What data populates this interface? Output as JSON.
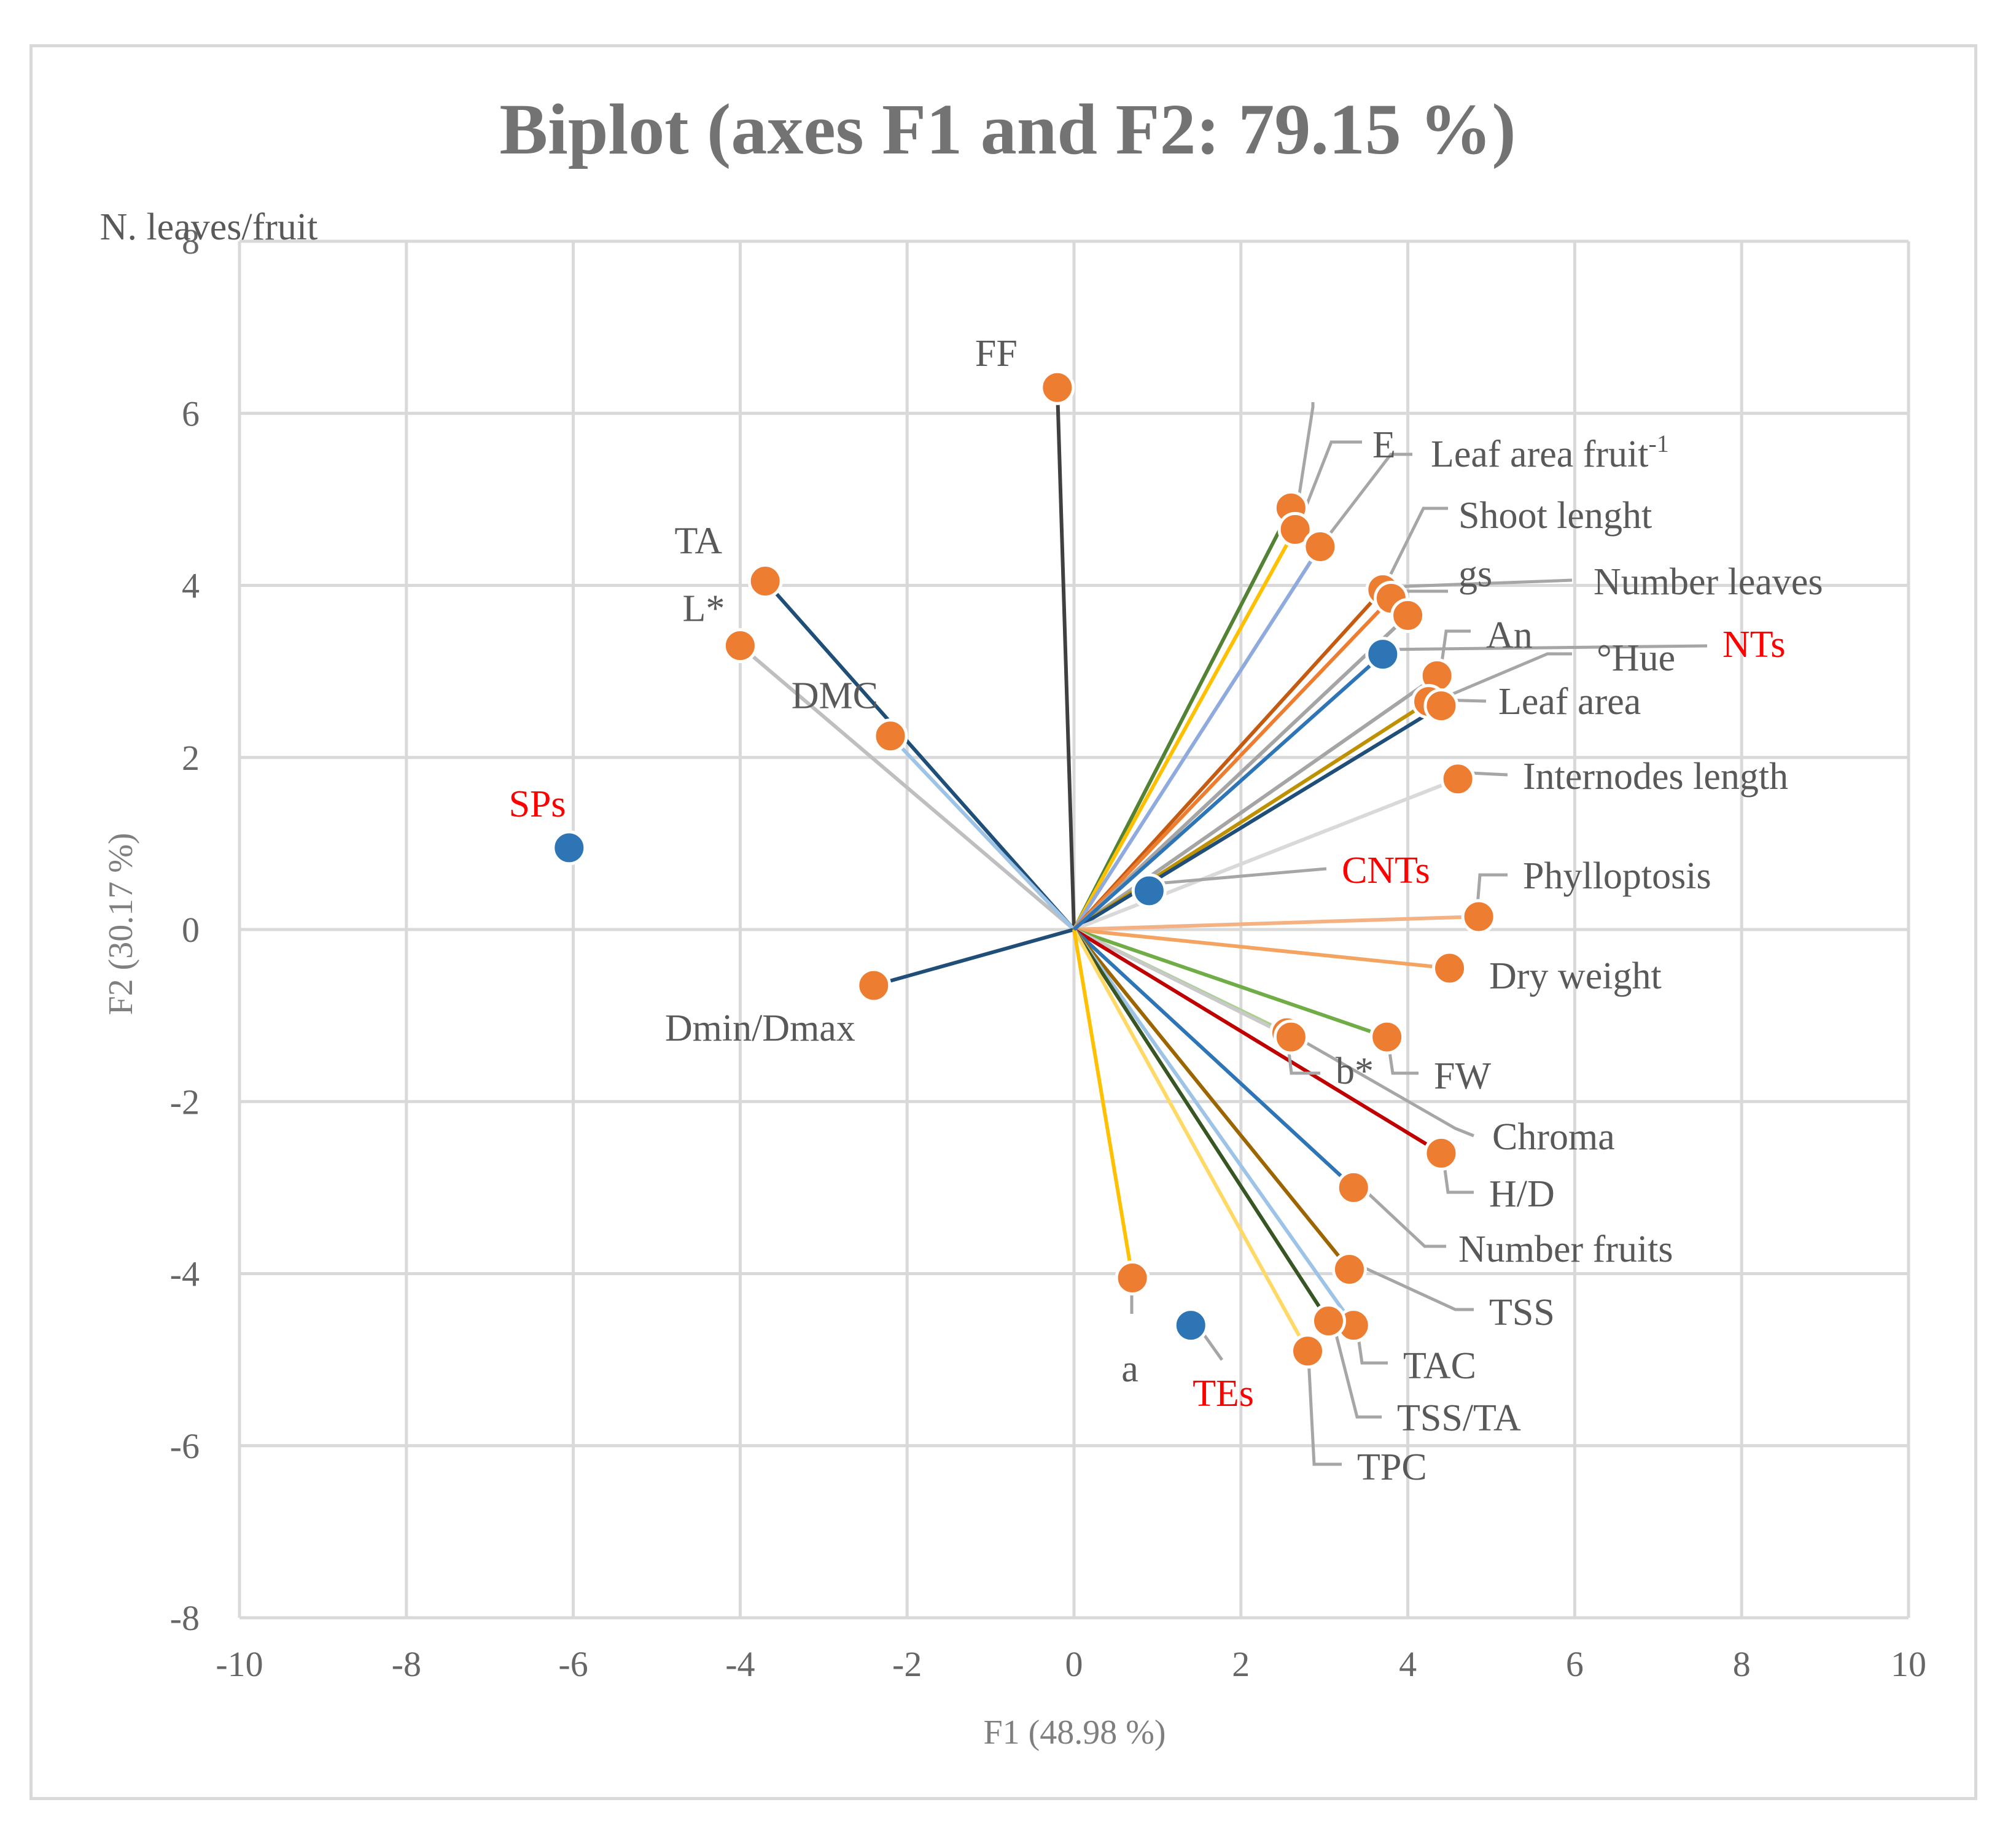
{
  "chart_data": {
    "type": "scatter",
    "title": "Biplot (axes F1 and F2: 79.15 %)",
    "xlabel": "F1 (48.98 %)",
    "ylabel": "F2 (30.17 %)",
    "xlim": [
      -10,
      10
    ],
    "ylim": [
      -8,
      8
    ],
    "xticks": [
      "-10",
      "-8",
      "-6",
      "-4",
      "-2",
      "0",
      "2",
      "4",
      "6",
      "8",
      "10"
    ],
    "yticks": [
      "8",
      "6",
      "4",
      "2",
      "0",
      "-2",
      "-4",
      "-6",
      "-8"
    ],
    "grid": true,
    "series": [
      {
        "name": "Variables",
        "color": "#ed7d31",
        "points": [
          {
            "label": "FF",
            "x": -0.2,
            "y": 6.3,
            "vector_color": "#404040"
          },
          {
            "label": "TA",
            "x": -3.7,
            "y": 4.05,
            "vector_color": "#1f4e79"
          },
          {
            "label": "L*",
            "x": -4.0,
            "y": 3.3,
            "vector_color": "#bfbfbf"
          },
          {
            "label": "DMC",
            "x": -2.2,
            "y": 2.25,
            "vector_color": "#9dc3e6"
          },
          {
            "label": "Dmin/Dmax",
            "x": -2.4,
            "y": -0.65,
            "vector_color": "#1f4e79"
          },
          {
            "label": "N. leaves/fruit",
            "x": 2.6,
            "y": 4.9,
            "vector_color": "#548235"
          },
          {
            "label": "E",
            "x": 2.65,
            "y": 4.65,
            "vector_color": "#ffc000"
          },
          {
            "label": "Leaf area fruit-1",
            "x": 2.95,
            "y": 4.45,
            "vector_color": "#8faadc"
          },
          {
            "label": "Shoot lenght",
            "x": 3.7,
            "y": 3.95,
            "vector_color": "#c55a11"
          },
          {
            "label": "gs",
            "x": 3.8,
            "y": 3.85,
            "vector_color": "#ed7d31"
          },
          {
            "label": "Number leaves",
            "x": 4.0,
            "y": 3.65,
            "vector_color": "#a5a5a5"
          },
          {
            "label": "An",
            "x": 4.35,
            "y": 2.95,
            "vector_color": "#a5a5a5"
          },
          {
            "label": "°Hue",
            "x": 4.25,
            "y": 2.65,
            "vector_color": "#bf9000"
          },
          {
            "label": "Leaf area",
            "x": 4.4,
            "y": 2.6,
            "vector_color": "#1f4e79"
          },
          {
            "label": "Internodes length",
            "x": 4.6,
            "y": 1.75,
            "vector_color": "#d9d9d9"
          },
          {
            "label": "Phylloptosis",
            "x": 4.85,
            "y": 0.15,
            "vector_color": "#f4b183"
          },
          {
            "label": "Dry weight",
            "x": 4.5,
            "y": -0.45,
            "vector_color": "#f4a460"
          },
          {
            "label": "FW",
            "x": 3.75,
            "y": -1.25,
            "vector_color": "#70ad47"
          },
          {
            "label": "b*",
            "x": 2.55,
            "y": -1.2,
            "vector_color": "#a9d18e"
          },
          {
            "label": "Chroma",
            "x": 2.6,
            "y": -1.25,
            "vector_color": "#c9c9c9"
          },
          {
            "label": "H/D",
            "x": 4.4,
            "y": -2.6,
            "vector_color": "#c00000"
          },
          {
            "label": "Number fruits",
            "x": 3.35,
            "y": -3.0,
            "vector_color": "#2e75b6"
          },
          {
            "label": "TSS",
            "x": 3.3,
            "y": -3.95,
            "vector_color": "#9c6500"
          },
          {
            "label": "TAC",
            "x": 3.35,
            "y": -4.6,
            "vector_color": "#9dc3e6"
          },
          {
            "label": "TSS/TA",
            "x": 3.05,
            "y": -4.55,
            "vector_color": "#375623"
          },
          {
            "label": "TPC",
            "x": 2.8,
            "y": -4.9,
            "vector_color": "#ffd966"
          },
          {
            "label": "a",
            "x": 0.7,
            "y": -4.05,
            "vector_color": "#ffc000"
          }
        ]
      },
      {
        "name": "Observations",
        "color": "#2e75b6",
        "points": [
          {
            "label": "NTs",
            "x": 3.7,
            "y": 3.2,
            "vector_color": "#2e75b6"
          },
          {
            "label": "CNTs",
            "x": 0.9,
            "y": 0.45,
            "vector_color": ""
          },
          {
            "label": "SPs",
            "x": -6.05,
            "y": 0.95,
            "vector_color": ""
          },
          {
            "label": "TEs",
            "x": 1.4,
            "y": -4.6,
            "vector_color": ""
          }
        ]
      }
    ]
  }
}
